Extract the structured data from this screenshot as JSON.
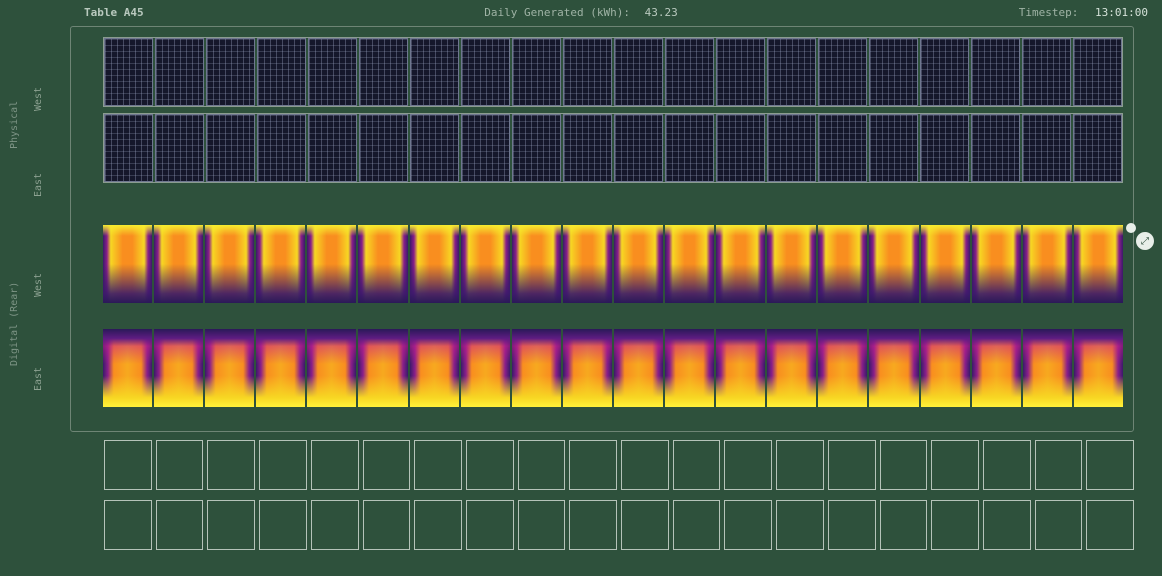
{
  "header": {
    "title": "Table A45",
    "generated_label": "Daily Generated (kWh):",
    "generated_value": "43.23",
    "timestep_label": "Timestep:",
    "timestep_value": "13:01:00"
  },
  "side": {
    "physical_label": "Physical",
    "digital_label": "Digital (Rear)",
    "west": "West",
    "east": "East"
  },
  "layout": {
    "modules_per_row": 20,
    "physical_rows": [
      "West",
      "East"
    ],
    "digital_rows": [
      "West",
      "East"
    ],
    "outline_rows": 2
  },
  "colors": {
    "page_bg": "#2e513c",
    "frame_border": "#6e8575",
    "module_bg": "#15172b",
    "module_border": "#6f7790",
    "cell_grid": "rgba(160,170,200,.35)",
    "outline_border": "#b5c3b9",
    "text_primary": "#b9c9be",
    "text_dim": "#7d9485",
    "heat_palette": [
      "#2a1958",
      "#3a1a6a",
      "#5e1c82",
      "#8a1f8a",
      "#c81e8c",
      "#f98e1f",
      "#f7a91f",
      "#f7d723",
      "#fff23a"
    ]
  },
  "button_glyph": "⤢"
}
